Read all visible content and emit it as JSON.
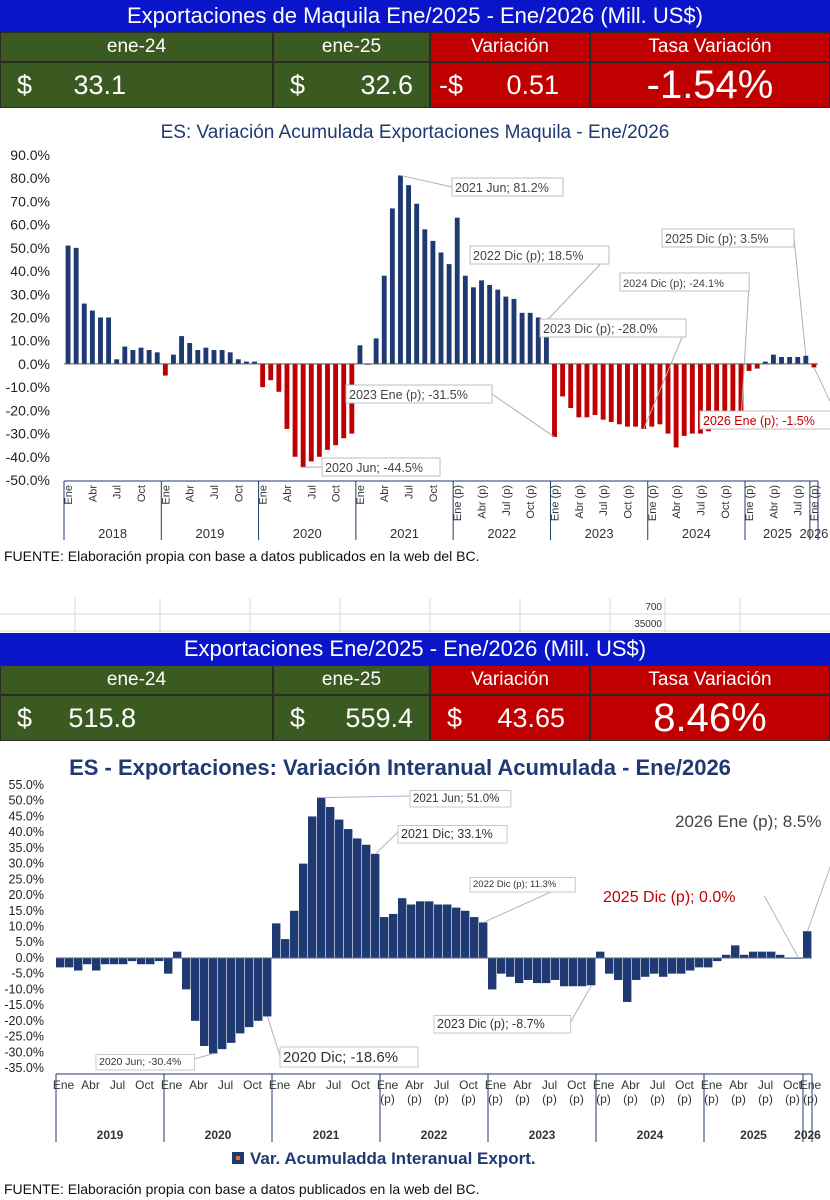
{
  "panel1": {
    "title": "Exportaciones de Maquila Ene/2025 - Ene/2026 (Mill. US$)",
    "headers": [
      "ene-24",
      "ene-25",
      "Variación",
      "Tasa Variación"
    ],
    "values": {
      "v1_cur": "$",
      "v1": "33.1",
      "v2_cur": "$",
      "v2": "32.6",
      "var_cur": "-$",
      "var": "0.51",
      "rate": "-1.54%"
    }
  },
  "chart1": {
    "title": "ES: Variación Acumulada Exportaciones Maquila - Ene/2026",
    "fuente": "FUENTE:   Elaboración propia con base a datos publicados en la web del BC."
  },
  "strip": {
    "a": "700",
    "b": "35000"
  },
  "panel2": {
    "title": "Exportaciones Ene/2025 - Ene/2026 (Mill. US$)",
    "headers": [
      "ene-24",
      "ene-25",
      "Variación",
      "Tasa Variación"
    ],
    "values": {
      "v1_cur": "$",
      "v1": "515.8",
      "v2_cur": "$",
      "v2": "559.4",
      "var_cur": "$",
      "var": "43.65",
      "rate": "8.46%"
    }
  },
  "chart2": {
    "title": "ES - Exportaciones: Variación Interanual Acumulada - Ene/2026",
    "legend": "Var. Acumuladda Interanual Export.",
    "fuente": "FUENTE:   Elaboración propia con base a datos publicados en la web del BC."
  },
  "colors": {
    "navy": "#1f3a73",
    "red": "#c00000",
    "green": "#3b5a22",
    "blue": "#0a14c8"
  },
  "chart_data": [
    {
      "type": "bar",
      "title": "ES: Variación Acumulada Exportaciones Maquila - Ene/2026",
      "ylim": [
        -50,
        90
      ],
      "yticks": [
        "-50.0%",
        "-40.0%",
        "-30.0%",
        "-20.0%",
        "-10.0%",
        "0.0%",
        "10.0%",
        "20.0%",
        "30.0%",
        "40.0%",
        "50.0%",
        "60.0%",
        "70.0%",
        "80.0%",
        "90.0%"
      ],
      "years": [
        "2018",
        "2019",
        "2020",
        "2021",
        "2022",
        "2023",
        "2024",
        "2025",
        "2026"
      ],
      "month_labels": [
        "Ene",
        "Abr",
        "Jul",
        "Oct"
      ],
      "prelim_labels": [
        "Ene (p)",
        "Abr (p)",
        "Jul (p)",
        "Oct (p)"
      ],
      "values": [
        51,
        50,
        26,
        23,
        20,
        20,
        2,
        7.5,
        6,
        7,
        6,
        5,
        -5,
        4,
        12,
        9,
        6,
        7,
        6,
        6,
        5,
        2,
        1,
        1,
        -10,
        -7,
        -12,
        -28,
        -40,
        -44.5,
        -42,
        -40,
        -37,
        -35,
        -32,
        -30,
        8,
        0,
        11,
        38,
        67,
        81.2,
        77,
        69,
        58,
        53,
        48,
        43,
        63,
        38,
        33,
        36,
        34,
        32,
        29,
        28,
        22,
        22,
        20,
        18.5,
        -31.5,
        -14,
        -19,
        -23,
        -23,
        -22,
        -24,
        -25,
        -26,
        -27,
        -27,
        -28,
        -27,
        -26,
        -30,
        -36,
        -31,
        -30,
        -30,
        -29,
        -28,
        -27,
        -26,
        -24.1,
        -3,
        -2,
        1,
        4,
        3,
        3,
        3,
        3.5,
        -1.5
      ],
      "annotations": [
        "2021 Jun; 81.2%",
        "2022 Dic (p); 18.5%",
        "2025 Dic (p); 3.5%",
        "2024 Dic (p); -24.1%",
        "2023 Dic (p); -28.0%",
        "2023 Ene (p); -31.5%",
        "2020 Jun; -44.5%",
        "2026 Ene (p); -1.5%"
      ]
    },
    {
      "type": "bar",
      "title": "ES - Exportaciones: Variación Interanual Acumulada - Ene/2026",
      "ylim": [
        -35,
        55
      ],
      "yticks": [
        "-35.0%",
        "-30.0%",
        "-25.0%",
        "-20.0%",
        "-15.0%",
        "-10.0%",
        "-5.0%",
        "0.0%",
        "5.0%",
        "10.0%",
        "15.0%",
        "20.0%",
        "25.0%",
        "30.0%",
        "35.0%",
        "40.0%",
        "45.0%",
        "50.0%",
        "55.0%"
      ],
      "years": [
        "2019",
        "2020",
        "2021",
        "2022",
        "2023",
        "2024",
        "2025",
        "2026"
      ],
      "month_labels": [
        "Ene",
        "Abr",
        "Jul",
        "Oct"
      ],
      "prelim_labels": [
        "Ene (p)",
        "Abr (p)",
        "Jul (p)",
        "Oct (p)"
      ],
      "legend": "Var. Acumuladda Interanual Export.",
      "values": [
        -3,
        -3,
        -4,
        -2,
        -4,
        -2,
        -2,
        -2,
        -1,
        -2,
        -2,
        -1,
        -5,
        2,
        -10,
        -20,
        -28,
        -30.4,
        -29,
        -27,
        -24,
        -22,
        -20,
        -18.6,
        11,
        6,
        15,
        30,
        45,
        51,
        48,
        44,
        41,
        38,
        36,
        33.1,
        13,
        14,
        19,
        17,
        18,
        18,
        17,
        17,
        16,
        15,
        13,
        11.3,
        -10,
        -5,
        -6,
        -8,
        -7,
        -8,
        -8,
        -7,
        -9,
        -9,
        -9,
        -8.7,
        2,
        -5,
        -7,
        -14,
        -7,
        -6,
        -5,
        -6,
        -5,
        -5,
        -4,
        -3,
        -3,
        -1,
        1,
        4,
        1,
        2,
        2,
        2,
        1,
        0,
        0.0,
        8.5
      ],
      "annotations": [
        "2021 Jun; 51.0%",
        "2021 Dic; 33.1%",
        "2022 Dic (p); 11.3%",
        "2023 Dic (p); -8.7%",
        "2020 Jun; -30.4%",
        "2020 Dic; -18.6%",
        "2025 Dic (p); 0.0%",
        "2026 Ene (p); 8.5%"
      ]
    }
  ]
}
